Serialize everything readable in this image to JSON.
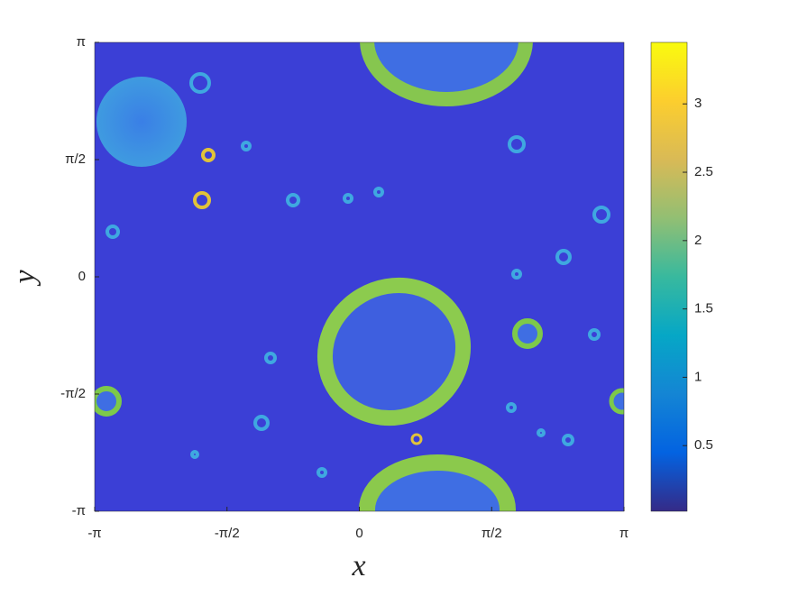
{
  "chart_data": {
    "type": "heatmap",
    "xlabel": "x",
    "ylabel": "y",
    "xlim": [
      -3.14159,
      3.14159
    ],
    "ylim": [
      -3.14159,
      3.14159
    ],
    "xticks": [
      {
        "value": -3.14159,
        "label": "-π"
      },
      {
        "value": -1.5708,
        "label": "-π/2"
      },
      0,
      {
        "value": 1.5708,
        "label": "π/2"
      },
      {
        "value": 3.14159,
        "label": "π"
      }
    ],
    "yticks": [
      {
        "value": -3.14159,
        "label": "-π"
      },
      {
        "value": -1.5708,
        "label": "-π/2"
      },
      0,
      {
        "value": 1.5708,
        "label": "π/2"
      },
      {
        "value": 3.14159,
        "label": "π"
      }
    ],
    "clim": [
      0.02,
      3.45
    ],
    "cticks": [
      0.5,
      1,
      1.5,
      2,
      2.5,
      3
    ],
    "colormap": [
      "#352a87",
      "#0363e1",
      "#1485d4",
      "#06a7c6",
      "#38b99e",
      "#92bf73",
      "#d9ba56",
      "#fcce2e",
      "#f9fb0e"
    ]
  }
}
